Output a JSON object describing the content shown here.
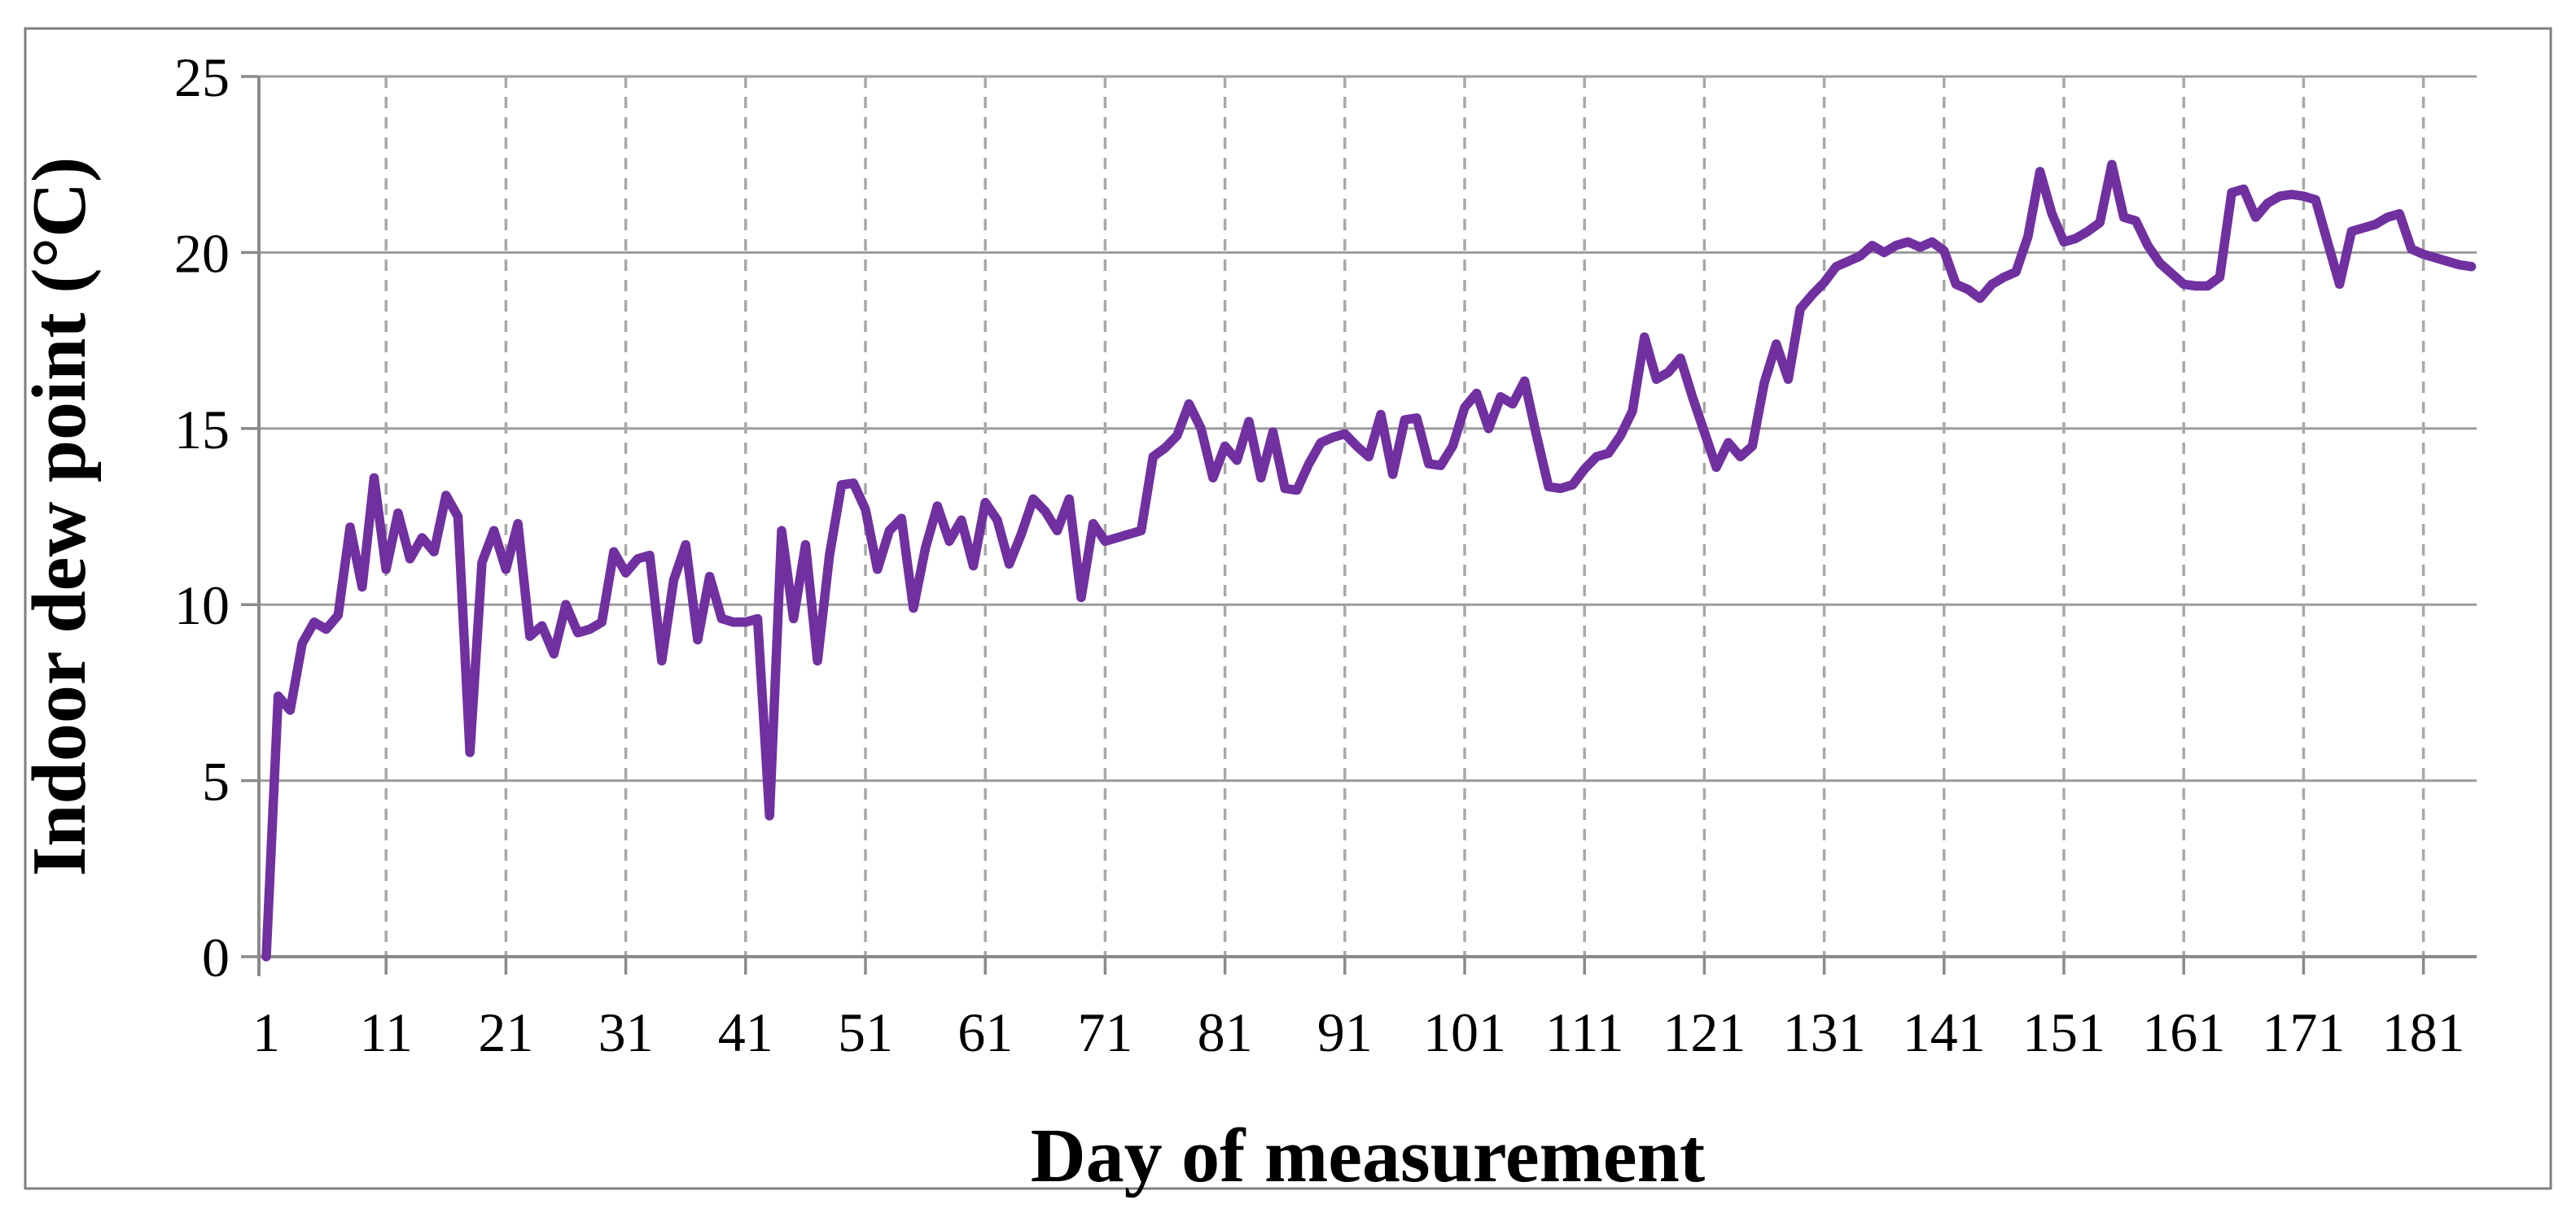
{
  "frame": {
    "background_color": "#ffffff",
    "border_color": "#7f7f7f"
  },
  "chart_data": {
    "type": "line",
    "title": "",
    "xlabel": "Day of measurement",
    "ylabel": "Indoor dew point (°C)",
    "x_tick_labels": [
      1,
      11,
      21,
      31,
      41,
      51,
      61,
      71,
      81,
      91,
      101,
      111,
      121,
      131,
      141,
      151,
      161,
      171,
      181
    ],
    "y_tick_labels": [
      0,
      5,
      10,
      15,
      20,
      25
    ],
    "xlim": [
      1,
      185.5
    ],
    "ylim": [
      0,
      25
    ],
    "grid": {
      "horizontal": "solid",
      "vertical": "dashed"
    },
    "legend_position": "none",
    "axis_color": "#8a8a8a",
    "hgrid_color": "#9c9c9c",
    "vgrid_color": "#a8a8a8",
    "series": [
      {
        "name": "Indoor dew point",
        "color": "#7030A0",
        "x_start": 1,
        "x_step": 1,
        "values": [
          0,
          7.4,
          7.0,
          8.9,
          9.5,
          9.3,
          9.7,
          12.2,
          10.5,
          13.6,
          11.0,
          12.6,
          11.3,
          11.9,
          11.5,
          13.1,
          12.5,
          5.8,
          11.2,
          12.1,
          11.0,
          12.3,
          9.1,
          9.4,
          8.6,
          10.0,
          9.2,
          9.3,
          9.5,
          11.5,
          10.9,
          11.3,
          11.4,
          8.4,
          10.7,
          11.7,
          9.0,
          10.8,
          9.6,
          9.5,
          9.5,
          9.6,
          4.0,
          12.1,
          9.6,
          11.7,
          8.4,
          11.4,
          13.4,
          13.45,
          12.7,
          11.0,
          12.1,
          12.45,
          9.9,
          11.6,
          12.8,
          11.8,
          12.4,
          11.1,
          12.9,
          12.4,
          11.15,
          12.0,
          13.0,
          12.65,
          12.1,
          13.0,
          10.2,
          12.3,
          11.8,
          11.9,
          12.0,
          12.1,
          14.2,
          14.45,
          14.8,
          15.7,
          15.0,
          13.6,
          14.5,
          14.1,
          15.2,
          13.6,
          14.9,
          13.3,
          13.25,
          14.0,
          14.6,
          14.75,
          14.85,
          14.5,
          14.2,
          15.4,
          13.7,
          15.25,
          15.3,
          14.0,
          13.95,
          14.5,
          15.6,
          16.0,
          15.0,
          15.9,
          15.7,
          16.35,
          14.8,
          13.35,
          13.3,
          13.4,
          13.85,
          14.2,
          14.3,
          14.8,
          15.5,
          17.6,
          16.4,
          16.6,
          17.0,
          15.9,
          14.9,
          13.9,
          14.6,
          14.2,
          14.5,
          16.3,
          17.4,
          16.4,
          18.4,
          18.8,
          19.15,
          19.6,
          19.75,
          19.9,
          20.2,
          20.0,
          20.2,
          20.3,
          20.15,
          20.3,
          20.05,
          19.1,
          18.95,
          18.7,
          19.1,
          19.3,
          19.45,
          20.45,
          22.3,
          21.1,
          20.3,
          20.4,
          20.6,
          20.85,
          22.5,
          21.0,
          20.9,
          20.2,
          19.7,
          19.4,
          19.1,
          19.05,
          19.05,
          19.3,
          21.7,
          21.8,
          21.0,
          21.4,
          21.6,
          21.65,
          21.6,
          21.5,
          20.3,
          19.1,
          20.6,
          20.7,
          20.8,
          21.0,
          21.1,
          20.1,
          19.95,
          19.85,
          19.75,
          19.65,
          19.6
        ]
      }
    ]
  }
}
